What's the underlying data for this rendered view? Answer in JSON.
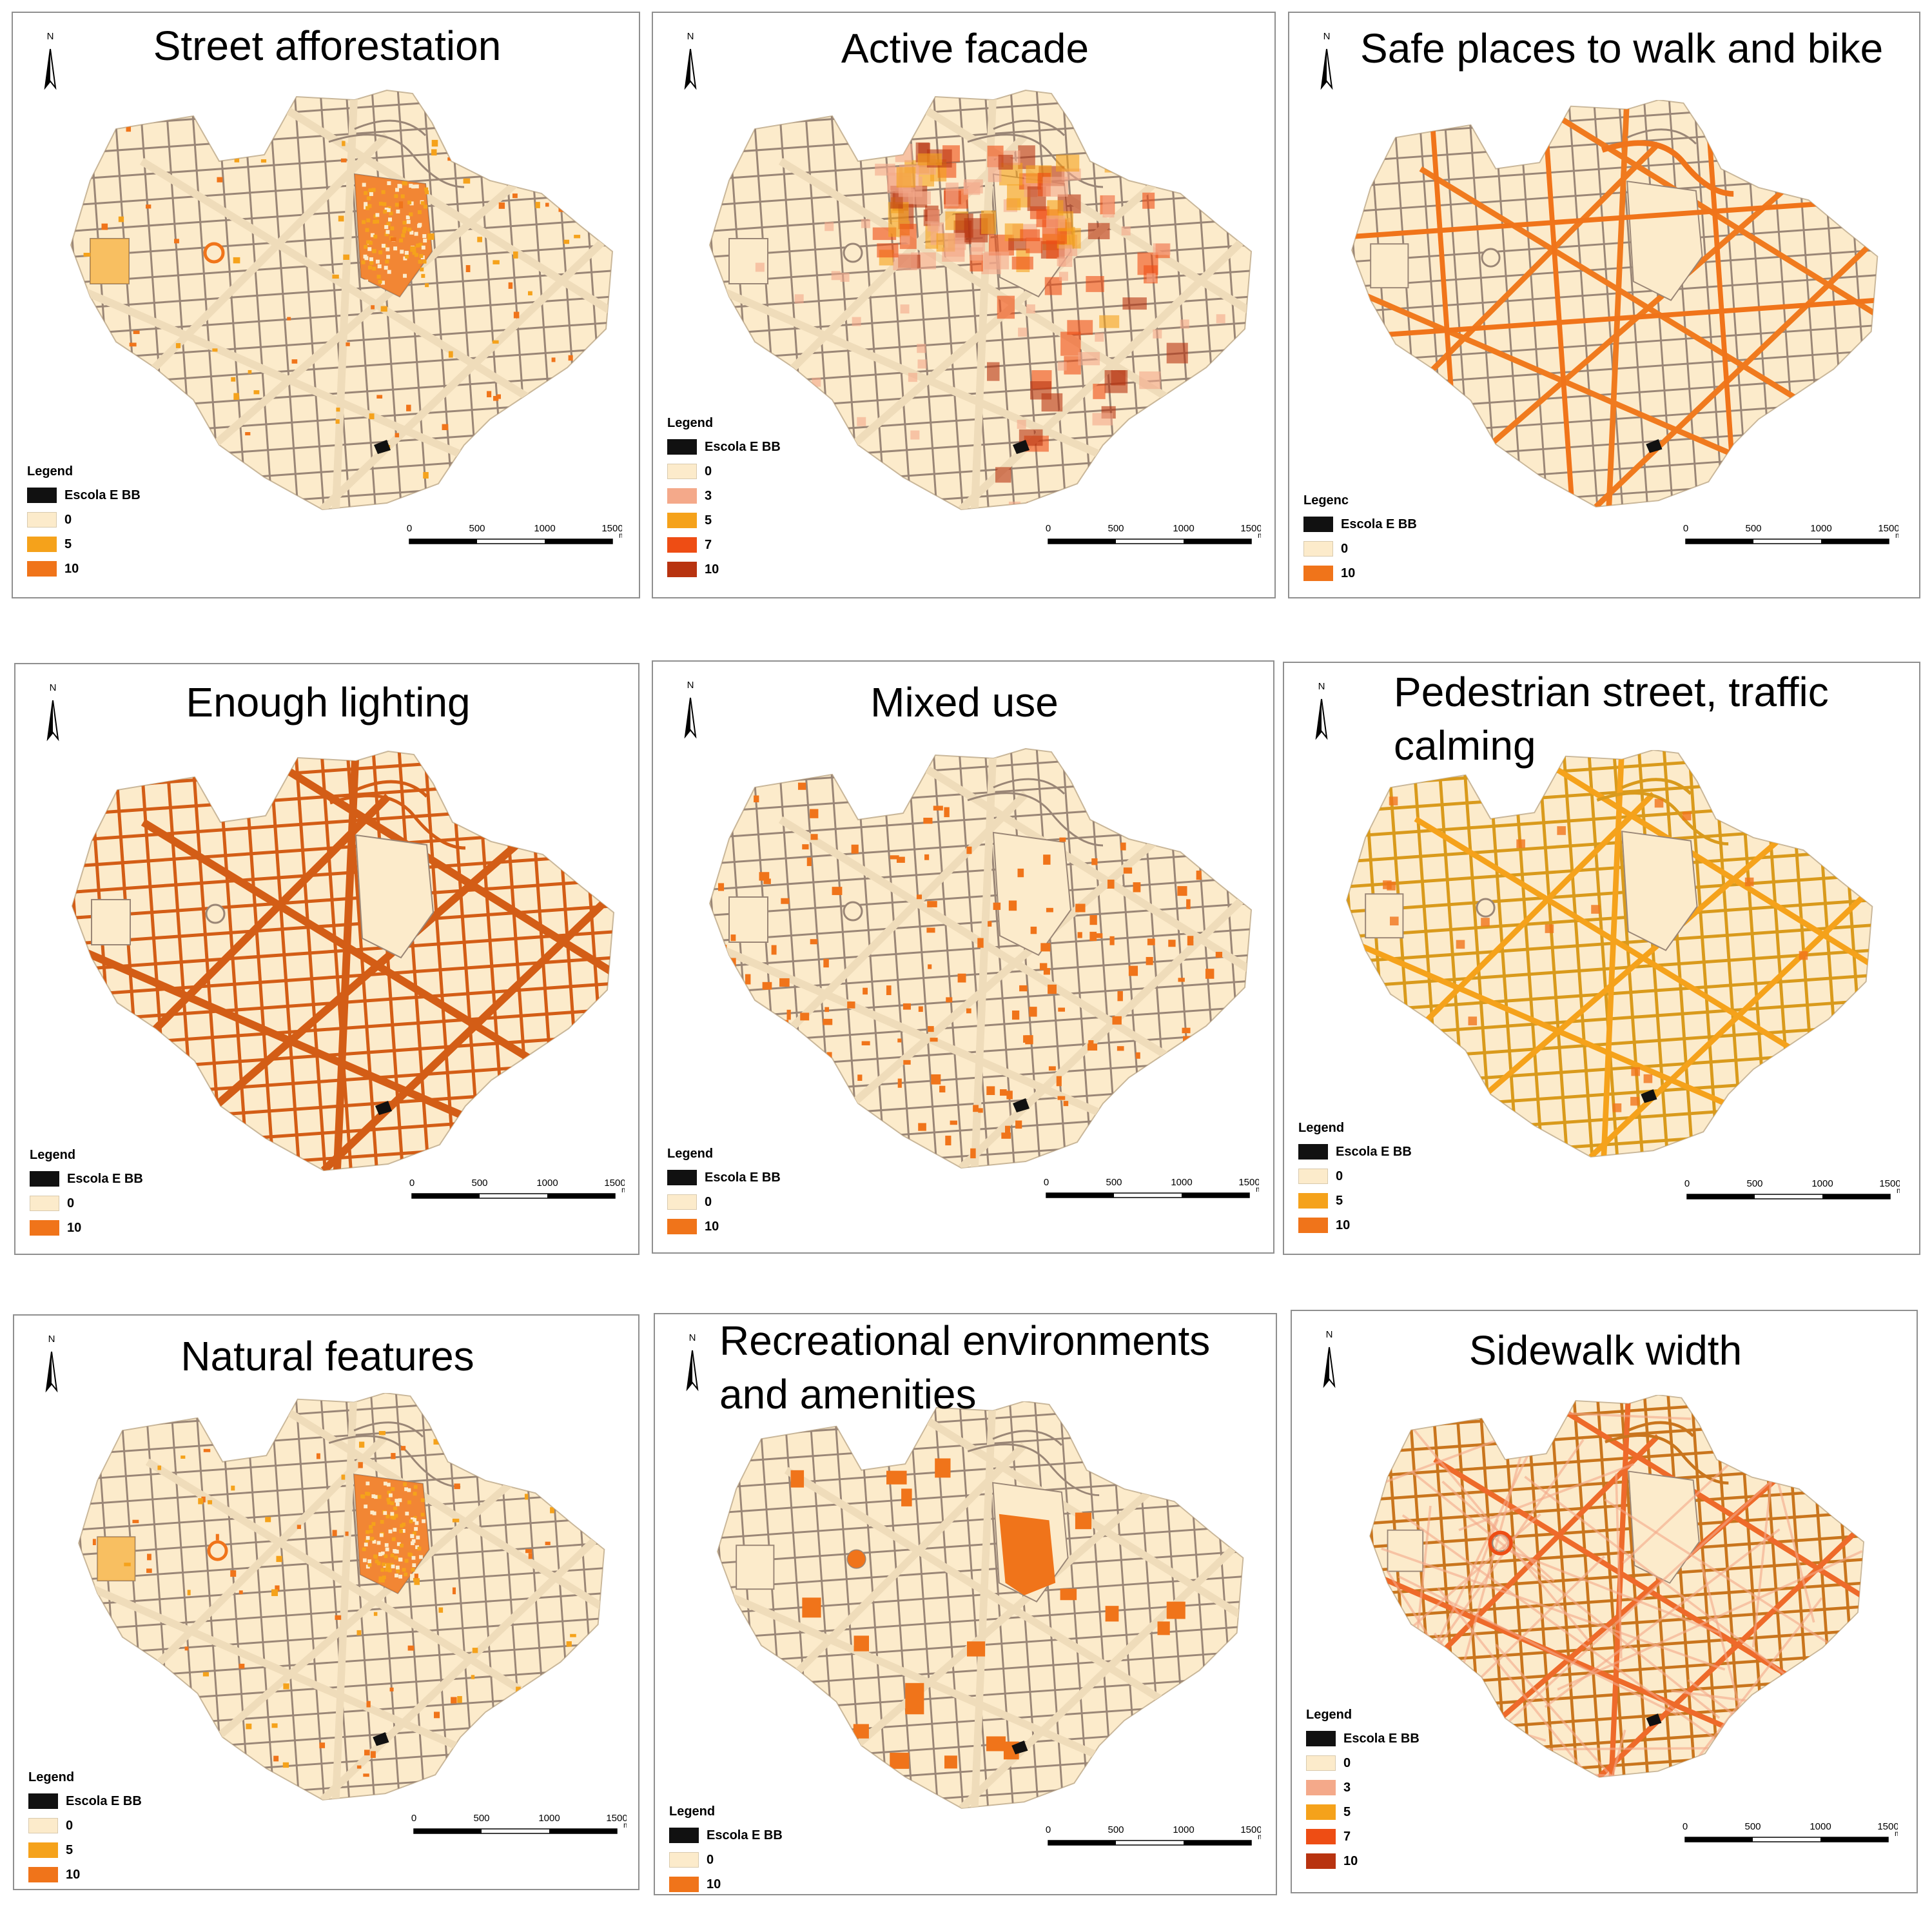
{
  "figure": {
    "panels": [
      {
        "title": "Street afforestation",
        "pattern": "afforestation",
        "legend": {
          "title": "Legend",
          "items": [
            {
              "label": "Escola E BB",
              "color": "#111111"
            },
            {
              "label": "0",
              "color": "#fcebcb"
            },
            {
              "label": "5",
              "color": "#f5a21b"
            },
            {
              "label": "10",
              "color": "#f0741a"
            }
          ]
        }
      },
      {
        "title": "Active facade",
        "pattern": "facade",
        "legend": {
          "title": "Legend",
          "items": [
            {
              "label": "Escola E BB",
              "color": "#111111"
            },
            {
              "label": "0",
              "color": "#fcebcb"
            },
            {
              "label": "3",
              "color": "#f4a98a"
            },
            {
              "label": "5",
              "color": "#f5a21b"
            },
            {
              "label": "7",
              "color": "#ee4d14"
            },
            {
              "label": "10",
              "color": "#b83310"
            }
          ]
        }
      },
      {
        "title": "Safe places to walk and bike",
        "pattern": "safe",
        "legend": {
          "title": "Legenc",
          "items": [
            {
              "label": "Escola E BB",
              "color": "#111111"
            },
            {
              "label": "0",
              "color": "#fcebcb"
            },
            {
              "label": "10",
              "color": "#f0741a"
            }
          ]
        }
      },
      {
        "title": "Enough lighting",
        "pattern": "lighting",
        "legend": {
          "title": "Legend",
          "items": [
            {
              "label": "Escola E BB",
              "color": "#111111"
            },
            {
              "label": "0",
              "color": "#fcebcb"
            },
            {
              "label": "10",
              "color": "#f0741a"
            }
          ]
        }
      },
      {
        "title": "Mixed use",
        "pattern": "mixed",
        "legend": {
          "title": "Legend",
          "items": [
            {
              "label": "Escola E BB",
              "color": "#111111"
            },
            {
              "label": "0",
              "color": "#fcebcb"
            },
            {
              "label": "10",
              "color": "#f0741a"
            }
          ]
        }
      },
      {
        "title": "Pedestrian street, traffic calming",
        "pattern": "pedestrian",
        "legend": {
          "title": "Legend",
          "items": [
            {
              "label": "Escola E BB",
              "color": "#111111"
            },
            {
              "label": "0",
              "color": "#fcebcb"
            },
            {
              "label": "5",
              "color": "#f5a21b"
            },
            {
              "label": "10",
              "color": "#f0741a"
            }
          ]
        }
      },
      {
        "title": "Natural features",
        "pattern": "natural",
        "legend": {
          "title": "Legend",
          "items": [
            {
              "label": "Escola E BB",
              "color": "#111111"
            },
            {
              "label": "0",
              "color": "#fcebcb"
            },
            {
              "label": "5",
              "color": "#f5a21b"
            },
            {
              "label": "10",
              "color": "#f0741a"
            }
          ]
        }
      },
      {
        "title": "Recreational environments and amenities",
        "pattern": "recreation",
        "legend": {
          "title": "Legend",
          "items": [
            {
              "label": "Escola E BB",
              "color": "#111111"
            },
            {
              "label": "0",
              "color": "#fcebcb"
            },
            {
              "label": "10",
              "color": "#f0741a"
            }
          ]
        }
      },
      {
        "title": "Sidewalk width",
        "pattern": "sidewalk",
        "legend": {
          "title": "Legend",
          "items": [
            {
              "label": "Escola E BB",
              "color": "#111111"
            },
            {
              "label": "0",
              "color": "#fcebcb"
            },
            {
              "label": "3",
              "color": "#f4a98a"
            },
            {
              "label": "5",
              "color": "#f5a21b"
            },
            {
              "label": "7",
              "color": "#ee4d14"
            },
            {
              "label": "10",
              "color": "#b83310"
            }
          ]
        }
      }
    ],
    "north_label": "N",
    "scale": {
      "ticks": [
        "0",
        "500",
        "1000",
        "1500"
      ],
      "unit": "m"
    },
    "colors": {
      "base": "#fcebcb",
      "street": "#9a8676"
    }
  }
}
